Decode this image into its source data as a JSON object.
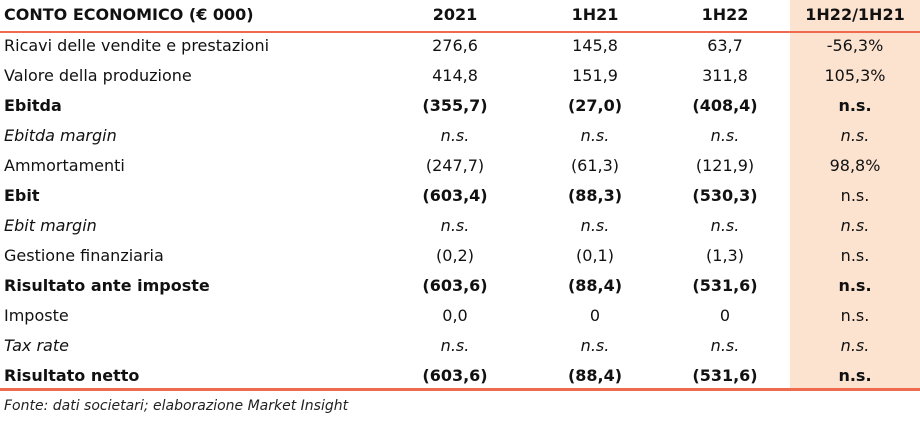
{
  "header": [
    "CONTO ECONOMICO (€ 000)",
    "2021",
    "1H21",
    "1H22",
    "1H22/1H21"
  ],
  "rows": [
    [
      "Ricavi delle vendite e prestazioni",
      "276,6",
      "145,8",
      "63,7",
      "-56,3%"
    ],
    [
      "Valore della produzione",
      "414,8",
      "151,9",
      "311,8",
      "105,3%"
    ],
    [
      "Ebitda",
      "(355,7)",
      "(27,0)",
      "(408,4)",
      "n.s."
    ],
    [
      "Ebitda margin",
      "n.s.",
      "n.s.",
      "n.s.",
      "n.s."
    ],
    [
      "Ammortamenti",
      "(247,7)",
      "(61,3)",
      "(121,9)",
      "98,8%"
    ],
    [
      "Ebit",
      "(603,4)",
      "(88,3)",
      "(530,3)",
      "n.s."
    ],
    [
      "Ebit margin",
      "n.s.",
      "n.s.",
      "n.s.",
      "n.s."
    ],
    [
      "Gestione finanziaria",
      "(0,2)",
      "(0,1)",
      "(1,3)",
      "n.s."
    ],
    [
      "Risultato ante imposte",
      "(603,6)",
      "(88,4)",
      "(531,6)",
      "n.s."
    ],
    [
      "Imposte",
      "0,0",
      "0",
      "0",
      "n.s."
    ],
    [
      "Tax rate",
      "n.s.",
      "n.s.",
      "n.s.",
      "n.s."
    ],
    [
      "Risultato netto",
      "(603,6)",
      "(88,4)",
      "(531,6)",
      "n.s."
    ]
  ],
  "footer": "Fonte: dati societari; elaborazione Market Insight"
}
